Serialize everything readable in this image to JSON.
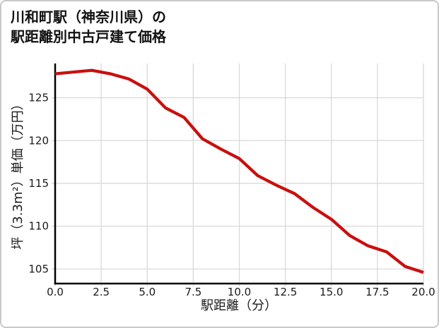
{
  "title": {
    "line1": "川和町駅（神奈川県）の",
    "line2": "駅距離別中古戸建て価格"
  },
  "chart_data": {
    "type": "line",
    "title": "川和町駅（神奈川県）の駅距離別中古戸建て価格",
    "xlabel": "駅距離（分）",
    "ylabel": "坪（3.3m²）単価（万円）",
    "x": [
      0,
      1,
      2,
      3,
      4,
      5,
      6,
      7,
      8,
      9,
      10,
      11,
      12,
      13,
      14,
      15,
      16,
      17,
      18,
      19,
      20
    ],
    "y": [
      127.8,
      128.0,
      128.2,
      127.8,
      127.2,
      126.0,
      123.8,
      122.7,
      120.2,
      119.0,
      117.9,
      115.9,
      114.8,
      113.8,
      112.2,
      110.8,
      108.9,
      107.7,
      107.0,
      105.3,
      104.6
    ],
    "xlim": [
      0,
      20
    ],
    "ylim": [
      103.3,
      129.0
    ],
    "x_tick_values": [
      0,
      2.5,
      5,
      7.5,
      10,
      12.5,
      15,
      17.5,
      20
    ],
    "x_tick_labels": [
      "0.0",
      "2.5",
      "5.0",
      "7.5",
      "10.0",
      "12.5",
      "15.0",
      "17.5",
      "20.0"
    ],
    "y_tick_values": [
      105,
      110,
      115,
      120,
      125
    ],
    "y_tick_labels": [
      "105",
      "110",
      "115",
      "120",
      "125"
    ],
    "grid": true,
    "legend": false,
    "line_color": "#c8100f",
    "line_width": 4.3,
    "grid_color": "#d9d9d9",
    "axis_color": "#000000",
    "tick_text_color": "#1a1a1a"
  }
}
